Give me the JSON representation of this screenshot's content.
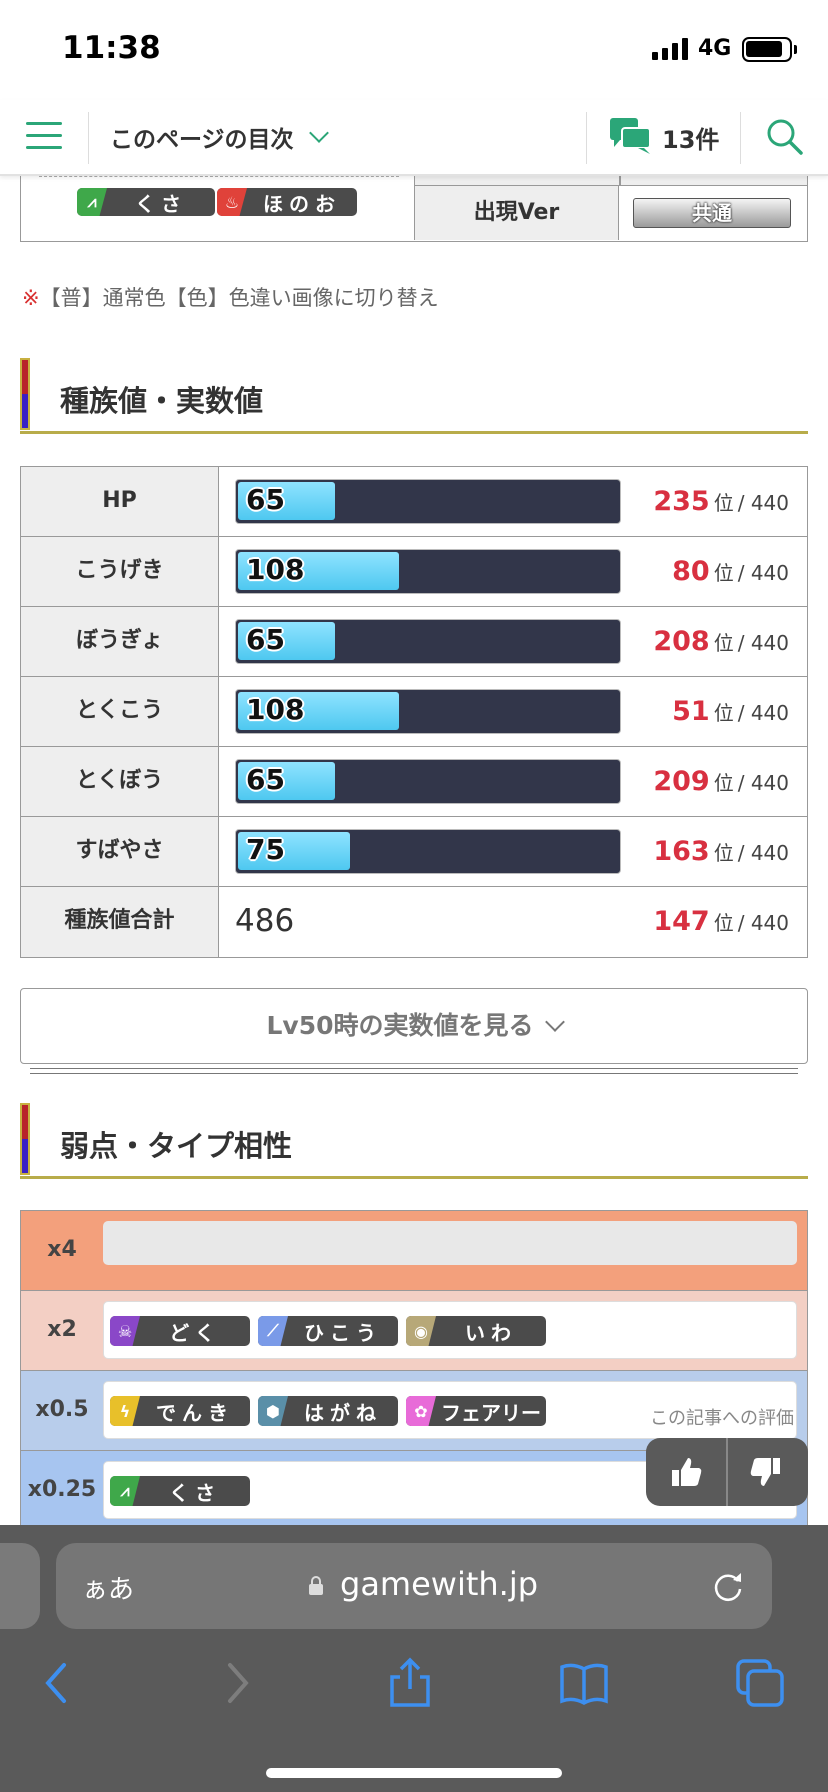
{
  "status": {
    "time": "11:38",
    "network": "4G"
  },
  "header": {
    "toc_label": "このページの目次",
    "comment_count": "13件"
  },
  "prev_table": {
    "types": [
      {
        "label": "くさ",
        "icon": "leaf-icon",
        "color": "#3fa84a"
      },
      {
        "label": "ほのお",
        "icon": "flame-icon",
        "color": "#e0423a"
      }
    ],
    "ver_label": "出現Ver",
    "ver_value": "共通"
  },
  "note": {
    "mark": "※",
    "text": "【普】通常色【色】色違い画像に切り替え"
  },
  "section_stats": {
    "title": "種族値・実数値"
  },
  "stats": {
    "max_base": 255,
    "rows": [
      {
        "name": "HP",
        "value": "65",
        "base": 65,
        "rank": "235",
        "rank_unit": "位",
        "total": "/ 440"
      },
      {
        "name": "こうげき",
        "value": "108",
        "base": 108,
        "rank": "80",
        "rank_unit": "位",
        "total": "/ 440"
      },
      {
        "name": "ぼうぎょ",
        "value": "65",
        "base": 65,
        "rank": "208",
        "rank_unit": "位",
        "total": "/ 440"
      },
      {
        "name": "とくこう",
        "value": "108",
        "base": 108,
        "rank": "51",
        "rank_unit": "位",
        "total": "/ 440"
      },
      {
        "name": "とくぼう",
        "value": "65",
        "base": 65,
        "rank": "209",
        "rank_unit": "位",
        "total": "/ 440"
      },
      {
        "name": "すばやさ",
        "value": "75",
        "base": 75,
        "rank": "163",
        "rank_unit": "位",
        "total": "/ 440"
      }
    ],
    "total_row": {
      "name": "種族値合計",
      "value": "486",
      "rank": "147",
      "rank_unit": "位",
      "total": "/ 440"
    }
  },
  "lv50_button": "Lv50時の実数値を見る",
  "section_weak": {
    "title": "弱点・タイプ相性"
  },
  "weakness": [
    {
      "mult": "x4",
      "types": []
    },
    {
      "mult": "x2",
      "types": [
        {
          "label": "どく",
          "icon": "poison-icon",
          "color": "#8a47c8"
        },
        {
          "label": "ひこう",
          "icon": "wing-icon",
          "color": "#7a9ae8"
        },
        {
          "label": "いわ",
          "icon": "rock-icon",
          "color": "#b7a878"
        }
      ]
    },
    {
      "mult": "x0.5",
      "types": [
        {
          "label": "でんき",
          "icon": "bolt-icon",
          "color": "#e8c02a"
        },
        {
          "label": "はがね",
          "icon": "steel-icon",
          "color": "#5a8fa8"
        },
        {
          "label": "フェアリー",
          "icon": "fairy-icon",
          "color": "#e86bd8"
        }
      ]
    },
    {
      "mult": "x0.25",
      "types": [
        {
          "label": "くさ",
          "icon": "leaf-icon",
          "color": "#3fa84a"
        }
      ]
    }
  ],
  "rating": {
    "label": "この記事への評価"
  },
  "browser": {
    "aa_label": "ぁあ",
    "url": "gamewith.jp"
  }
}
